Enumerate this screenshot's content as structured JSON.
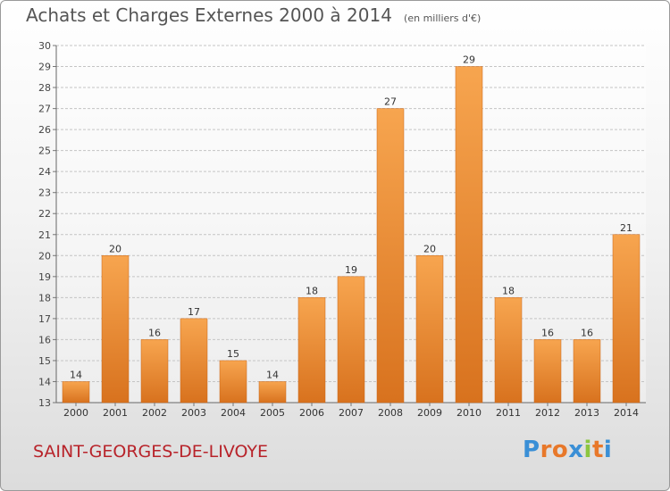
{
  "header": {
    "title": "Achats et Charges Externes 2000 à 2014",
    "unit": "(en milliers d'€)"
  },
  "footer": {
    "place": "SAINT-GEORGES-DE-LIVOYE",
    "logo_text": "Proxiti"
  },
  "colors": {
    "bar_light": "#f7a54f",
    "bar_dark": "#d8721e",
    "place_text": "#b8232a",
    "logo_letters": [
      "#3a8fd6",
      "#e8782a",
      "#e8782a",
      "#3a8fd6",
      "#8cc63f",
      "#e8782a",
      "#3a8fd6"
    ]
  },
  "chart_data": {
    "type": "bar",
    "title": "Achats et Charges Externes 2000 à 2014",
    "subtitle": "(en milliers d'€)",
    "categories": [
      "2000",
      "2001",
      "2002",
      "2003",
      "2004",
      "2005",
      "2006",
      "2007",
      "2008",
      "2009",
      "2010",
      "2011",
      "2012",
      "2013",
      "2014"
    ],
    "values": [
      14,
      20,
      16,
      17,
      15,
      14,
      18,
      19,
      27,
      20,
      29,
      18,
      16,
      16,
      21
    ],
    "ylim": [
      13,
      30
    ],
    "yticks": [
      13,
      14,
      15,
      16,
      17,
      18,
      19,
      20,
      21,
      22,
      23,
      24,
      25,
      26,
      27,
      28,
      29,
      30
    ],
    "grid": "horizontal",
    "data_labels": true
  }
}
